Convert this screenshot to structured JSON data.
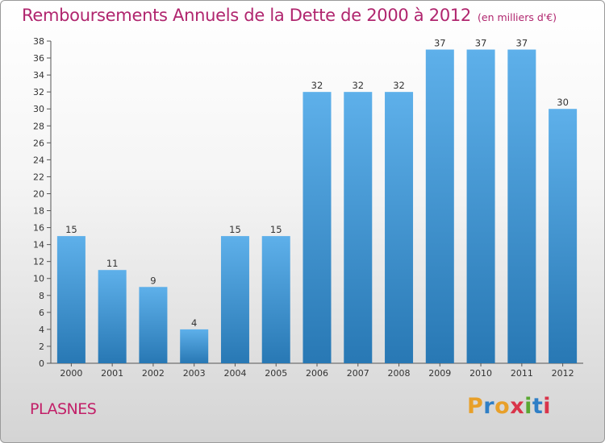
{
  "header": {
    "title": "Remboursements Annuels de la Dette de 2000 à 2012",
    "unit": "(en milliers d'€)"
  },
  "footer": {
    "commune": "PLASNES",
    "brand": "Proxiti",
    "brand_colors": [
      "#e8a02a",
      "#2f7fc6",
      "#e8a02a",
      "#d9344a",
      "#5aa832",
      "#2f7fc6",
      "#d9344a"
    ]
  },
  "colors": {
    "bar_light": "#5eb0ea",
    "bar_dark": "#2878b4",
    "title": "#b0256e",
    "commune": "#c21f68"
  },
  "chart_data": {
    "type": "bar",
    "title": "Remboursements Annuels de la Dette de 2000 à 2012",
    "xlabel": "",
    "ylabel": "",
    "categories": [
      "2000",
      "2001",
      "2002",
      "2003",
      "2004",
      "2005",
      "2006",
      "2007",
      "2008",
      "2009",
      "2010",
      "2011",
      "2012"
    ],
    "values": [
      15,
      11,
      9,
      4,
      15,
      15,
      32,
      32,
      32,
      37,
      37,
      37,
      30
    ],
    "ylim": [
      0,
      38
    ],
    "yticks": [
      0,
      2,
      4,
      6,
      8,
      10,
      12,
      14,
      16,
      18,
      20,
      22,
      24,
      26,
      28,
      30,
      32,
      34,
      36,
      38
    ],
    "grid": false,
    "data_labels": true
  }
}
